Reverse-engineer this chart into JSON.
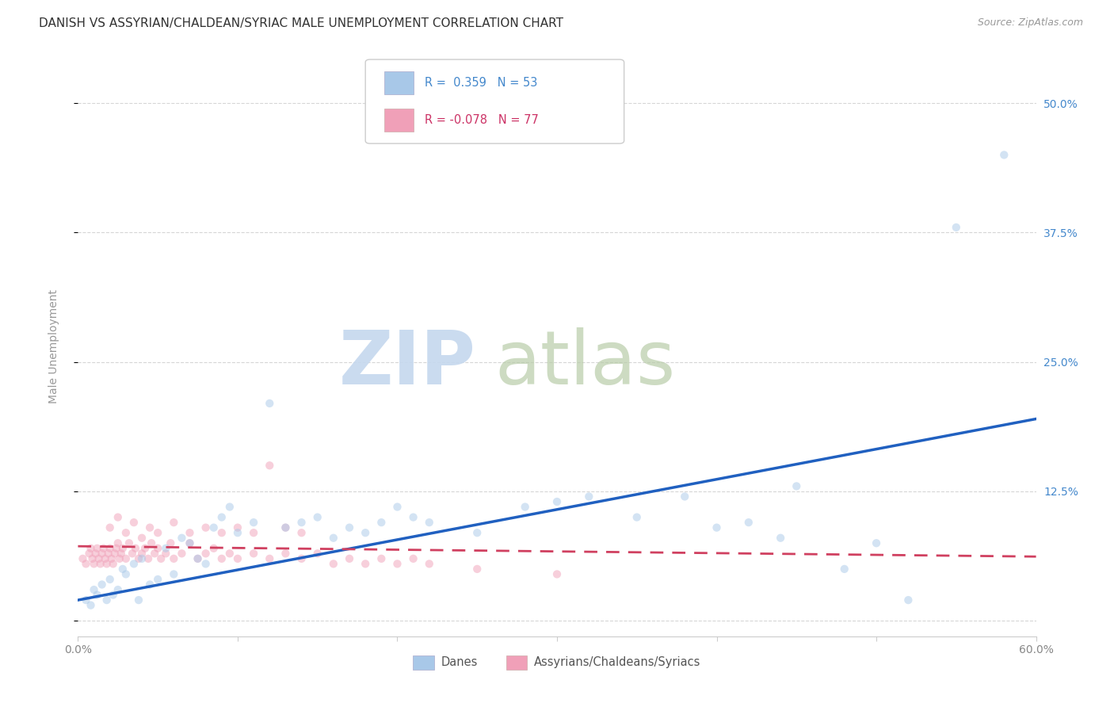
{
  "title": "DANISH VS ASSYRIAN/CHALDEAN/SYRIAC MALE UNEMPLOYMENT CORRELATION CHART",
  "source": "Source: ZipAtlas.com",
  "ylabel": "Male Unemployment",
  "xlim": [
    0.0,
    0.6
  ],
  "ylim": [
    -0.015,
    0.545
  ],
  "yticks": [
    0.0,
    0.125,
    0.25,
    0.375,
    0.5
  ],
  "ytick_labels": [
    "",
    "12.5%",
    "25.0%",
    "37.5%",
    "50.0%"
  ],
  "r_blue": 0.359,
  "n_blue": 53,
  "r_pink": -0.078,
  "n_pink": 77,
  "legend_label_blue": "Danes",
  "legend_label_pink": "Assyrians/Chaldeans/Syriacs",
  "blue_color": "#a8c8e8",
  "pink_color": "#f0a0b8",
  "line_blue": "#2060c0",
  "line_pink": "#d04060",
  "background_color": "#ffffff",
  "grid_color": "#cccccc",
  "title_fontsize": 11,
  "tick_color_right": "#4488cc",
  "scatter_size": 55,
  "scatter_alpha": 0.5,
  "blue_x": [
    0.005,
    0.008,
    0.01,
    0.012,
    0.015,
    0.018,
    0.02,
    0.022,
    0.025,
    0.028,
    0.03,
    0.035,
    0.038,
    0.04,
    0.045,
    0.05,
    0.055,
    0.06,
    0.065,
    0.07,
    0.075,
    0.08,
    0.085,
    0.09,
    0.095,
    0.1,
    0.11,
    0.12,
    0.13,
    0.14,
    0.15,
    0.16,
    0.17,
    0.18,
    0.19,
    0.2,
    0.21,
    0.22,
    0.25,
    0.28,
    0.3,
    0.32,
    0.35,
    0.38,
    0.4,
    0.42,
    0.44,
    0.45,
    0.48,
    0.5,
    0.52,
    0.55,
    0.58
  ],
  "blue_y": [
    0.02,
    0.015,
    0.03,
    0.025,
    0.035,
    0.02,
    0.04,
    0.025,
    0.03,
    0.05,
    0.045,
    0.055,
    0.02,
    0.06,
    0.035,
    0.04,
    0.07,
    0.045,
    0.08,
    0.075,
    0.06,
    0.055,
    0.09,
    0.1,
    0.11,
    0.085,
    0.095,
    0.21,
    0.09,
    0.095,
    0.1,
    0.08,
    0.09,
    0.085,
    0.095,
    0.11,
    0.1,
    0.095,
    0.085,
    0.11,
    0.115,
    0.12,
    0.1,
    0.12,
    0.09,
    0.095,
    0.08,
    0.13,
    0.05,
    0.075,
    0.02,
    0.38,
    0.45
  ],
  "pink_x": [
    0.003,
    0.005,
    0.007,
    0.008,
    0.009,
    0.01,
    0.011,
    0.012,
    0.013,
    0.014,
    0.015,
    0.016,
    0.017,
    0.018,
    0.019,
    0.02,
    0.021,
    0.022,
    0.023,
    0.024,
    0.025,
    0.026,
    0.027,
    0.028,
    0.03,
    0.032,
    0.034,
    0.036,
    0.038,
    0.04,
    0.042,
    0.044,
    0.046,
    0.048,
    0.05,
    0.052,
    0.055,
    0.058,
    0.06,
    0.065,
    0.07,
    0.075,
    0.08,
    0.085,
    0.09,
    0.095,
    0.1,
    0.11,
    0.12,
    0.13,
    0.14,
    0.15,
    0.16,
    0.17,
    0.18,
    0.19,
    0.2,
    0.21,
    0.22,
    0.25,
    0.3,
    0.02,
    0.025,
    0.03,
    0.035,
    0.04,
    0.045,
    0.05,
    0.06,
    0.07,
    0.08,
    0.09,
    0.1,
    0.11,
    0.12,
    0.13,
    0.14
  ],
  "pink_y": [
    0.06,
    0.055,
    0.065,
    0.07,
    0.06,
    0.055,
    0.065,
    0.07,
    0.06,
    0.055,
    0.065,
    0.07,
    0.06,
    0.055,
    0.065,
    0.07,
    0.06,
    0.055,
    0.065,
    0.07,
    0.075,
    0.06,
    0.065,
    0.07,
    0.06,
    0.075,
    0.065,
    0.07,
    0.06,
    0.065,
    0.07,
    0.06,
    0.075,
    0.065,
    0.07,
    0.06,
    0.065,
    0.075,
    0.06,
    0.065,
    0.075,
    0.06,
    0.065,
    0.07,
    0.06,
    0.065,
    0.06,
    0.065,
    0.06,
    0.065,
    0.06,
    0.065,
    0.055,
    0.06,
    0.055,
    0.06,
    0.055,
    0.06,
    0.055,
    0.05,
    0.045,
    0.09,
    0.1,
    0.085,
    0.095,
    0.08,
    0.09,
    0.085,
    0.095,
    0.085,
    0.09,
    0.085,
    0.09,
    0.085,
    0.15,
    0.09,
    0.085
  ],
  "blue_trend_x0": 0.0,
  "blue_trend_y0": 0.02,
  "blue_trend_x1": 0.6,
  "blue_trend_y1": 0.195,
  "pink_trend_x0": 0.0,
  "pink_trend_y0": 0.072,
  "pink_trend_x1": 0.6,
  "pink_trend_y1": 0.062
}
